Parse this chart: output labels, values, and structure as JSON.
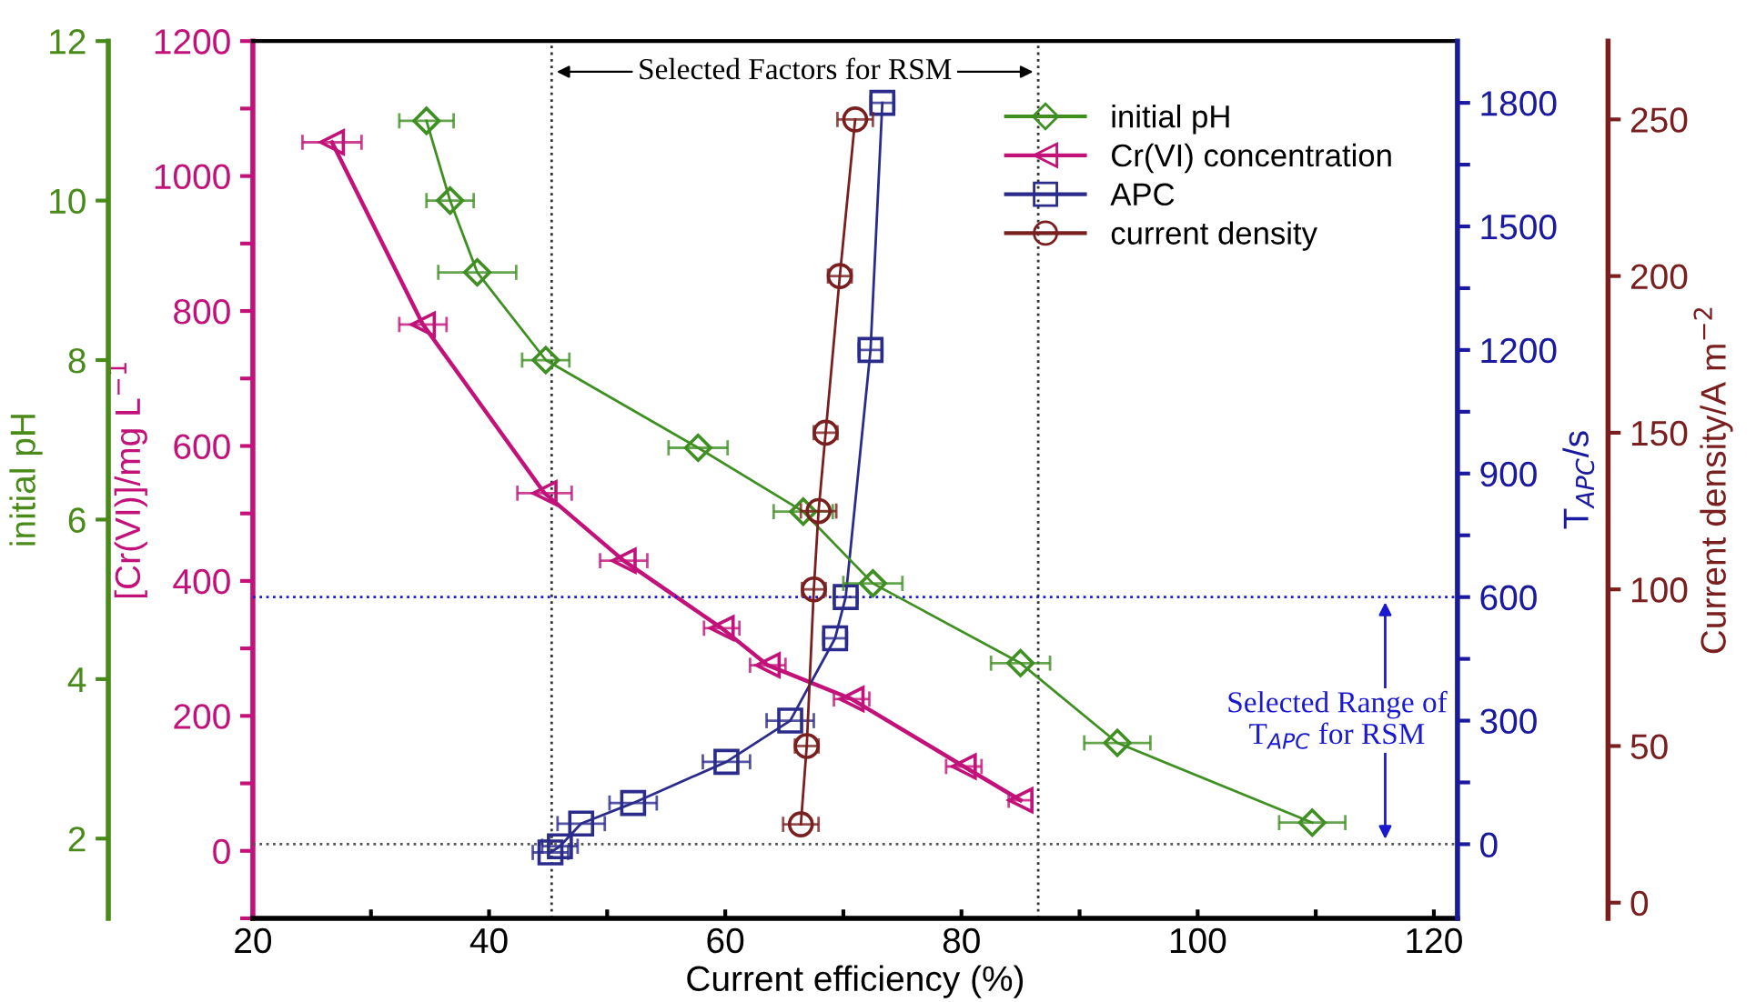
{
  "chart_data": [
    {
      "type": "line",
      "xlabel": "Current efficiency (%)",
      "ylabel": "[Cr(VI)]/mg L$^{−1}$",
      "y2label": "T$_{APC}$/s",
      "xlim": [
        20,
        122
      ],
      "xticks": [
        20,
        {
          "value": 30,
          "label": null
        },
        40,
        {
          "value": 50,
          "label": null
        },
        60,
        {
          "value": 70,
          "label": null
        },
        80,
        {
          "value": 90,
          "label": null
        },
        100,
        {
          "value": 110,
          "label": null
        },
        120
      ],
      "ylim": [
        -100,
        1200
      ],
      "yticks": [
        {
          "value": -100,
          "label": null
        },
        0,
        {
          "value": 100,
          "label": null
        },
        200,
        {
          "value": 300,
          "label": null
        },
        400,
        {
          "value": 500,
          "label": null
        },
        600,
        {
          "value": 700,
          "label": null
        },
        800,
        {
          "value": 900,
          "label": null
        },
        1000,
        {
          "value": 1100,
          "label": null
        },
        1200
      ],
      "y2lim": [
        -180,
        1950
      ],
      "y2ticks": [
        0,
        {
          "value": 150,
          "label": null
        },
        300,
        {
          "value": 450,
          "label": null
        },
        600,
        {
          "value": 750,
          "label": null
        },
        900,
        {
          "value": 1050,
          "label": null
        },
        1200,
        {
          "value": 1350,
          "label": null
        },
        1500,
        {
          "value": 1650,
          "label": null
        },
        1800
      ],
      "grid": false,
      "legend": "top right",
      "series": [
        {
          "name": "Cr(VI) concentration",
          "color": "#c2127a",
          "marker": "triangle",
          "x": [
            26.7,
            34.4,
            44.7,
            51.4,
            59.7,
            63.6,
            70.7,
            80.2,
            85.0
          ],
          "values": [
            1050,
            780,
            530,
            430,
            330,
            275,
            225,
            125,
            75
          ],
          "xerrors": [
            2.5,
            2.0,
            2.3,
            2.0,
            1.5,
            1.5,
            1.5,
            1.5,
            1.0
          ]
        },
        {
          "name": "APC",
          "color": "#2b2b8c",
          "axis": "y2",
          "marker": "square",
          "x": [
            45.2,
            46.0,
            47.8,
            52.2,
            60.1,
            65.5,
            69.3,
            70.2,
            72.3,
            73.3
          ],
          "values": [
            -20,
            -5,
            50,
            100,
            200,
            300,
            500,
            600,
            1200,
            1800
          ],
          "xerrors": [
            1.5,
            1.5,
            2.0,
            2.0,
            2.0,
            2.0,
            1.0,
            1.0,
            1.0,
            1.0
          ]
        }
      ],
      "ref_lines": [
        {
          "axis": "x",
          "value": 45.3,
          "color": "#333333",
          "line_style": "dotted"
        },
        {
          "axis": "x",
          "value": 86.5,
          "color": "#333333",
          "line_style": "dotted"
        },
        {
          "axis": "y2",
          "value": 0,
          "color": "#555555",
          "line_style": "dotted"
        },
        {
          "axis": "y2",
          "value": 600,
          "color": "#1a1ad0",
          "line_style": "dotted"
        }
      ],
      "annotations": [
        "Selected Factors for RSM",
        "Selected Range of\nT$_{APC}$ for RSM"
      ]
    },
    {
      "type": "line",
      "ylabel": "initial pH",
      "y2label": "Current density/A m$^{−2}$",
      "xlim": [
        20,
        122
      ],
      "tick_labels": "y",
      "ylim": [
        1,
        12
      ],
      "yticks": [
        2,
        4,
        6,
        8,
        10,
        12
      ],
      "y2lim": [
        -5,
        275
      ],
      "y2ticks": [
        0,
        50,
        100,
        150,
        200,
        250
      ],
      "grid": false,
      "legend": "top right",
      "series": [
        {
          "name": "initial pH",
          "color": "#3f8f22",
          "marker": "diamond",
          "x": [
            34.7,
            36.7,
            39.0,
            44.8,
            57.7,
            66.6,
            72.5,
            85.0,
            93.2,
            109.7
          ],
          "values": [
            11.0,
            10.0,
            9.1,
            8.0,
            6.9,
            6.1,
            5.2,
            4.2,
            3.2,
            2.2
          ],
          "xerrors": [
            2.3,
            2.0,
            3.3,
            2.0,
            2.5,
            2.5,
            2.5,
            2.5,
            2.8,
            2.8
          ]
        },
        {
          "name": "current density",
          "color": "#7a1f1f",
          "axis": "y2",
          "marker": "circle",
          "x": [
            71.0,
            69.7,
            68.5,
            67.9,
            67.5,
            66.9,
            66.4
          ],
          "values": [
            250,
            200,
            150,
            125,
            100,
            50,
            25
          ],
          "xerrors": [
            1.5,
            1.0,
            1.0,
            1.5,
            1.0,
            1.0,
            1.5
          ]
        }
      ]
    }
  ]
}
